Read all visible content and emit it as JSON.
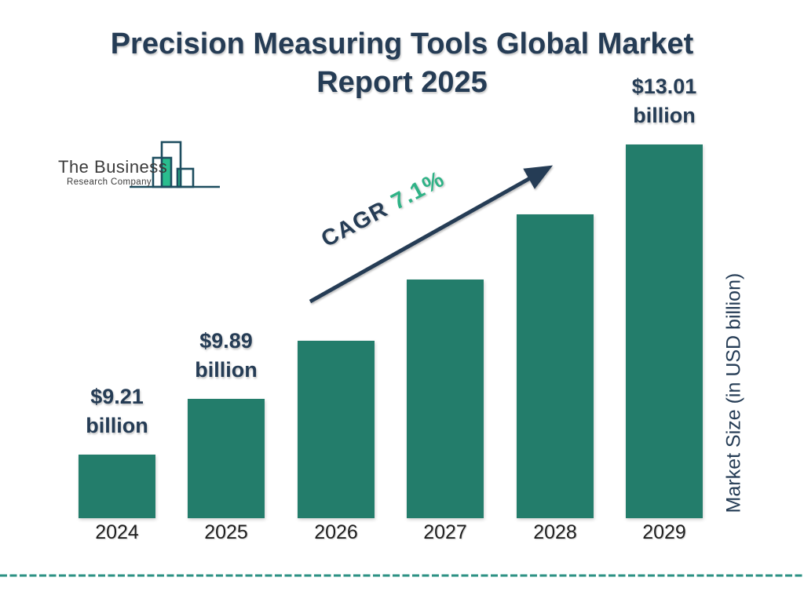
{
  "header": {
    "title_line1": "Precision Measuring Tools Global Market",
    "title_line2": "Report 2025"
  },
  "logo": {
    "name_line1": "The Business",
    "name_line2": "Research Company"
  },
  "chart_data": {
    "type": "bar",
    "title": "Precision Measuring Tools Global Market Report 2025",
    "categories": [
      "2024",
      "2025",
      "2026",
      "2027",
      "2028",
      "2029"
    ],
    "values": [
      9.21,
      9.89,
      10.6,
      11.35,
      12.15,
      13.01
    ],
    "unit": "USD billion",
    "bar_labels": [
      {
        "index": 0,
        "value_text": "$9.21",
        "unit_text": "billion"
      },
      {
        "index": 1,
        "value_text": "$9.89",
        "unit_text": "billion"
      },
      {
        "index": 5,
        "value_text": "$13.01",
        "unit_text": "billion"
      }
    ],
    "annotation": {
      "cagr_label": "CAGR",
      "cagr_value": "7.1%"
    },
    "ylabel": "Market Size (in USD billion)",
    "xlabel": "",
    "ylim": [
      8.43,
      13.4
    ],
    "grid": false,
    "legend": "none"
  },
  "colors": {
    "bar_green": "#237D6B",
    "navy": "#253C55",
    "accent_green": "#2FB286",
    "logo_outline": "#1D4D5F",
    "logo_green": "#2ABD8E",
    "dash_teal": "#2B9183",
    "year_text": "#1E1E1E",
    "logo_text": "#3B3B3B"
  }
}
